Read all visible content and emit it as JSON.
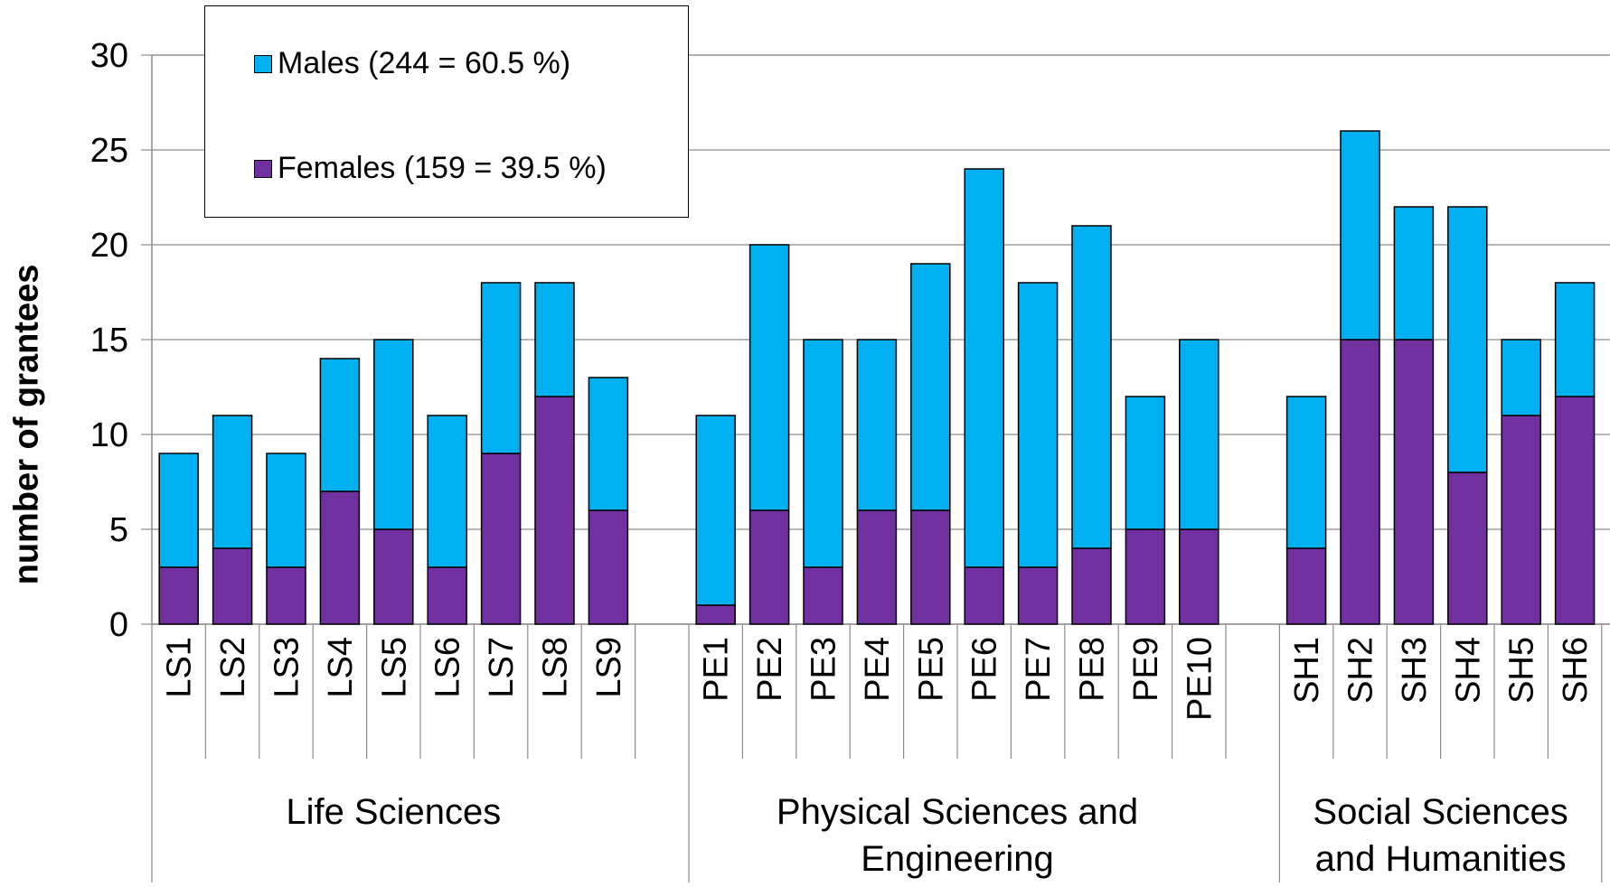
{
  "chart_data": {
    "type": "bar",
    "stacked": true,
    "categories": [
      "LS1",
      "LS2",
      "LS3",
      "LS4",
      "LS5",
      "LS6",
      "LS7",
      "LS8",
      "LS9",
      "PE1",
      "PE2",
      "PE3",
      "PE4",
      "PE5",
      "PE6",
      "PE7",
      "PE8",
      "PE9",
      "PE10",
      "SH1",
      "SH2",
      "SH3",
      "SH4",
      "SH5",
      "SH6"
    ],
    "groups": [
      {
        "label": "Life Sciences",
        "categories": [
          "LS1",
          "LS2",
          "LS3",
          "LS4",
          "LS5",
          "LS6",
          "LS7",
          "LS8",
          "LS9"
        ]
      },
      {
        "label": "Physical Sciences and Engineering",
        "categories": [
          "PE1",
          "PE2",
          "PE3",
          "PE4",
          "PE5",
          "PE6",
          "PE7",
          "PE8",
          "PE9",
          "PE10"
        ]
      },
      {
        "label": "Social Sciences and Humanities",
        "categories": [
          "SH1",
          "SH2",
          "SH3",
          "SH4",
          "SH5",
          "SH6"
        ]
      }
    ],
    "series": [
      {
        "name": "Females (159 = 39.5 %)",
        "color": "#7030a0",
        "values": [
          3,
          4,
          3,
          7,
          5,
          3,
          9,
          12,
          6,
          1,
          6,
          3,
          6,
          6,
          3,
          3,
          4,
          5,
          5,
          4,
          15,
          15,
          8,
          11,
          12
        ]
      },
      {
        "name": "Males (244 = 60.5 %)",
        "color": "#00b0f0",
        "values": [
          6,
          7,
          6,
          7,
          10,
          8,
          9,
          6,
          7,
          10,
          14,
          12,
          9,
          13,
          21,
          15,
          17,
          7,
          10,
          8,
          11,
          7,
          14,
          4,
          6
        ]
      }
    ],
    "totals": [
      9,
      11,
      9,
      14,
      15,
      11,
      18,
      18,
      13,
      11,
      20,
      15,
      15,
      19,
      24,
      18,
      21,
      12,
      15,
      12,
      26,
      22,
      22,
      15,
      18
    ],
    "ylabel": "number of grantees",
    "ylim": [
      0,
      30
    ],
    "yticks": [
      "0",
      "5",
      "10",
      "15",
      "20",
      "25",
      "30"
    ],
    "grid": true,
    "legend_position": "top-left",
    "legend": [
      "Males (244 = 60.5 %)",
      "Females (159 = 39.5 %)"
    ]
  }
}
